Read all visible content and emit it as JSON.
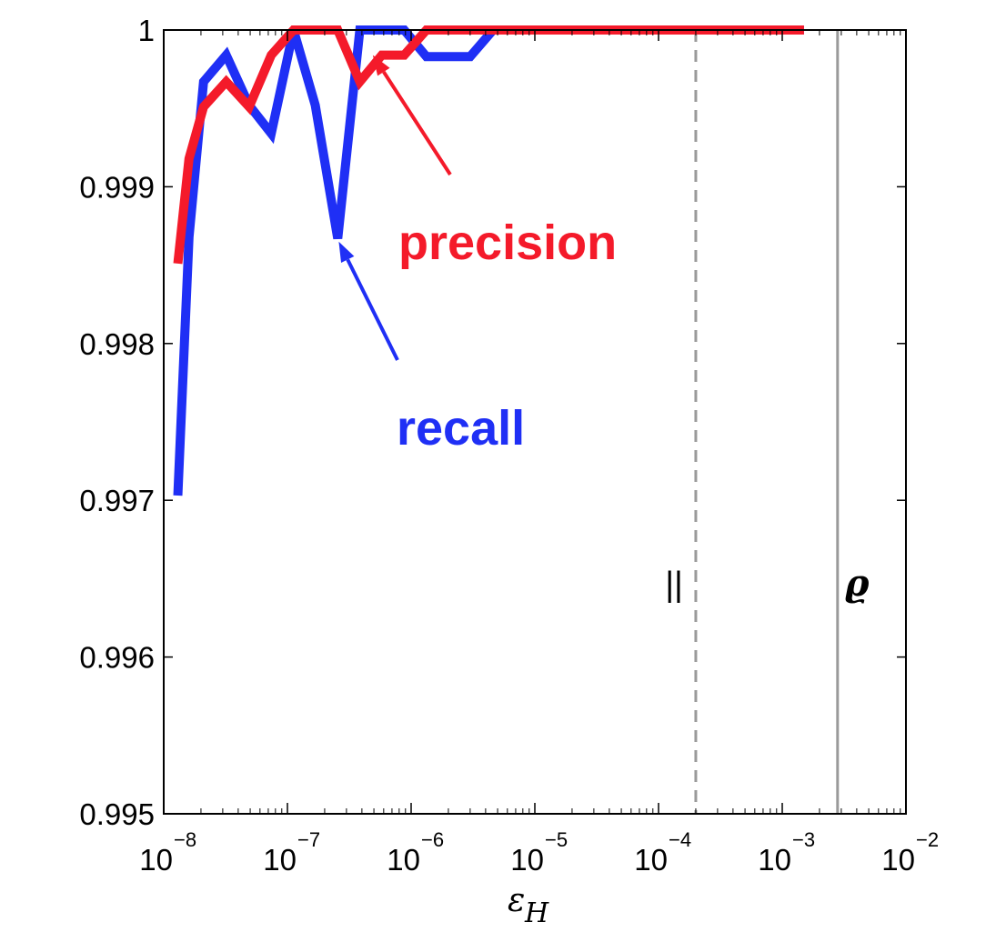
{
  "chart_data": {
    "type": "line",
    "xscale": "log",
    "xlim": [
      1e-08,
      0.01
    ],
    "ylim": [
      0.995,
      1.0
    ],
    "xlabel": "ε",
    "xlabel_subscript": "H",
    "ylabel": "",
    "grid": false,
    "yticks": [
      {
        "value": 0.995,
        "label": "0.995"
      },
      {
        "value": 0.996,
        "label": "0.996"
      },
      {
        "value": 0.997,
        "label": "0.997"
      },
      {
        "value": 0.998,
        "label": "0.998"
      },
      {
        "value": 0.999,
        "label": "0.999"
      },
      {
        "value": 1.0,
        "label": "1"
      }
    ],
    "xticks": [
      {
        "value": 1e-08,
        "base": "10",
        "exponent": "−8"
      },
      {
        "value": 1e-07,
        "base": "10",
        "exponent": "−7"
      },
      {
        "value": 1e-06,
        "base": "10",
        "exponent": "−6"
      },
      {
        "value": 1e-05,
        "base": "10",
        "exponent": "−5"
      },
      {
        "value": 0.0001,
        "base": "10",
        "exponent": "−4"
      },
      {
        "value": 0.001,
        "base": "10",
        "exponent": "−3"
      },
      {
        "value": 0.01,
        "base": "10",
        "exponent": "−2"
      }
    ],
    "series": [
      {
        "name": "recall",
        "color": "#1f2ff5",
        "x": [
          1.3e-08,
          1.6e-08,
          2.1e-08,
          3.2e-08,
          4.9e-08,
          7.4e-08,
          1.12e-07,
          1.68e-07,
          2.55e-07,
          3.85e-07,
          5.8e-07,
          8.8e-07,
          1.33e-06,
          2e-06,
          3e-06,
          4.6e-06,
          7e-06,
          1e-05,
          0.0015
        ],
        "y": [
          0.99703,
          0.99868,
          0.99967,
          0.99984,
          0.99952,
          0.99934,
          1.0,
          0.99952,
          0.99867,
          1.0,
          1.0,
          1.0,
          0.99983,
          0.99983,
          0.99983,
          1.0,
          1.0,
          1.0,
          1.0
        ]
      },
      {
        "name": "precision",
        "color": "#f41a2a",
        "x": [
          1.3e-08,
          1.6e-08,
          2.1e-08,
          3.2e-08,
          4.9e-08,
          7.4e-08,
          1.12e-07,
          1.68e-07,
          2.55e-07,
          3.85e-07,
          5.8e-07,
          8.8e-07,
          1.33e-06,
          2e-06,
          0.0015
        ],
        "y": [
          0.99851,
          0.99918,
          0.99951,
          0.99967,
          0.99951,
          0.99984,
          1.0,
          1.0,
          1.0,
          0.99967,
          0.99984,
          0.99984,
          1.0,
          1.0,
          1.0
        ]
      }
    ],
    "vertical_lines": [
      {
        "x": 0.0002,
        "style": "dashed",
        "color": "#9a9a9a",
        "label": "||",
        "label_style": "plain"
      },
      {
        "x": 0.0028,
        "style": "solid",
        "color": "#9a9a9a",
        "label": "ϱ",
        "label_style": "italic"
      }
    ],
    "annotations": [
      {
        "text": "precision",
        "series": "precision",
        "color": "#f41a2a",
        "arrow_to": {
          "x": 4.9e-07,
          "y": 0.99984
        }
      },
      {
        "text": "recall",
        "series": "recall",
        "color": "#1f2ff5",
        "arrow_to": {
          "x": 2.6e-07,
          "y": 0.99865
        }
      }
    ]
  }
}
